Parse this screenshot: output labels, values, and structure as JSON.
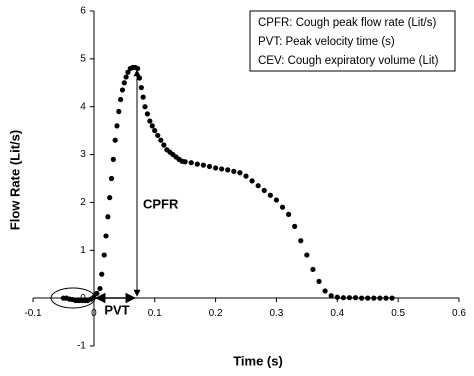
{
  "chart_data": {
    "type": "scatter",
    "x_label": "Time (s)",
    "y_label": "Flow Rate (Lit/s)",
    "legend_lines": [
      "CPFR: Cough peak flow rate (Lit/s)",
      "PVT: Peak velocity time (s)",
      "CEV: Cough expiratory volume (Lit)"
    ],
    "annotations": [
      "CPFR",
      "PVT"
    ],
    "color": "#000000",
    "x": [
      -0.05,
      -0.045,
      -0.04,
      -0.035,
      -0.03,
      -0.025,
      -0.02,
      -0.015,
      -0.01,
      -0.005,
      0,
      0.005,
      0.01,
      0.013,
      0.017,
      0.02,
      0.023,
      0.026,
      0.029,
      0.032,
      0.035,
      0.038,
      0.041,
      0.044,
      0.047,
      0.05,
      0.053,
      0.056,
      0.06,
      0.064,
      0.068,
      0.072,
      0.075,
      0.078,
      0.081,
      0.084,
      0.088,
      0.092,
      0.096,
      0.1,
      0.105,
      0.11,
      0.115,
      0.12,
      0.125,
      0.13,
      0.135,
      0.14,
      0.145,
      0.15,
      0.16,
      0.17,
      0.18,
      0.19,
      0.2,
      0.21,
      0.22,
      0.23,
      0.24,
      0.25,
      0.26,
      0.27,
      0.28,
      0.29,
      0.3,
      0.31,
      0.32,
      0.33,
      0.34,
      0.35,
      0.36,
      0.37,
      0.38,
      0.39,
      0.4,
      0.41,
      0.42,
      0.43,
      0.44,
      0.45,
      0.46,
      0.47,
      0.48,
      0.49
    ],
    "values": [
      0,
      0,
      -0.02,
      -0.03,
      -0.05,
      -0.05,
      -0.05,
      -0.05,
      -0.05,
      -0.02,
      0.02,
      0.1,
      0.2,
      0.5,
      0.9,
      1.3,
      1.7,
      2.1,
      2.5,
      2.9,
      3.3,
      3.6,
      3.9,
      4.15,
      4.35,
      4.5,
      4.62,
      4.72,
      4.8,
      4.82,
      4.82,
      4.8,
      4.6,
      4.4,
      4.2,
      4.0,
      3.85,
      3.7,
      3.6,
      3.5,
      3.4,
      3.3,
      3.2,
      3.1,
      3.05,
      3.0,
      2.95,
      2.9,
      2.86,
      2.85,
      2.83,
      2.8,
      2.78,
      2.75,
      2.72,
      2.7,
      2.68,
      2.65,
      2.62,
      2.55,
      2.45,
      2.35,
      2.25,
      2.15,
      2.05,
      1.9,
      1.75,
      1.5,
      1.2,
      0.9,
      0.6,
      0.35,
      0.15,
      0.05,
      0.02,
      0.01,
      0.01,
      0.01,
      0,
      0,
      0,
      0,
      0,
      0
    ],
    "xlim": [
      -0.1,
      0.6
    ],
    "xticks": [
      -0.1,
      0,
      0.1,
      0.2,
      0.3,
      0.4,
      0.5,
      0.6
    ],
    "ylim": [
      -1,
      6
    ],
    "yticks": [
      -1,
      0,
      1,
      2,
      3,
      4,
      5,
      6
    ]
  }
}
